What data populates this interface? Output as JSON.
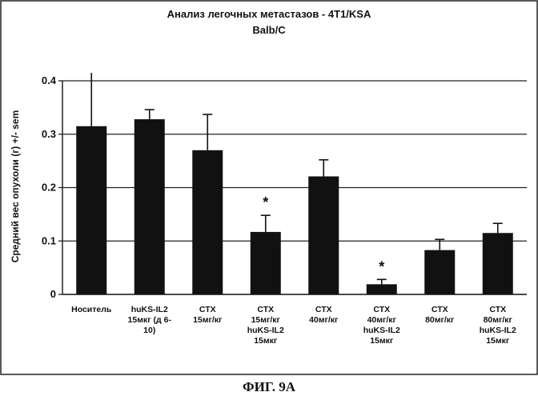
{
  "chart_data": {
    "type": "bar",
    "title": "Анализ легочных метастазов - 4T1/KSA",
    "subtitle": "Balb/C",
    "xlabel": "",
    "ylabel": "Средний вес опухоли (г) +/- sem",
    "ylim": [
      0,
      0.4
    ],
    "yticks": [
      "0",
      "0.1",
      "0.2",
      "0.3",
      "0.4"
    ],
    "grid": true,
    "categories": [
      [
        "Носитель"
      ],
      [
        "huKS-IL2",
        "15мкг (д 6-",
        "10)"
      ],
      [
        "СТХ",
        "15мг/кг"
      ],
      [
        "СТХ",
        "15мг/кг",
        "huKS-IL2",
        "15мкг"
      ],
      [
        "СТХ",
        "40мг/кг"
      ],
      [
        "СТХ",
        "40мг/кг",
        "huKS-IL2",
        "15мкг"
      ],
      [
        "СТХ",
        "80мг/кг"
      ],
      [
        "СТХ",
        "80мг/кг",
        "huKS-IL2",
        "15мкг"
      ]
    ],
    "values": [
      0.315,
      0.328,
      0.27,
      0.117,
      0.221,
      0.019,
      0.083,
      0.115
    ],
    "errors": [
      0.1,
      0.018,
      0.067,
      0.031,
      0.031,
      0.009,
      0.02,
      0.018
    ],
    "annotations": [
      {
        "category_index": 3,
        "text": "*"
      },
      {
        "category_index": 5,
        "text": "*"
      }
    ],
    "bar_color": "#111111"
  },
  "figure_caption": "ФИГ. 9А"
}
